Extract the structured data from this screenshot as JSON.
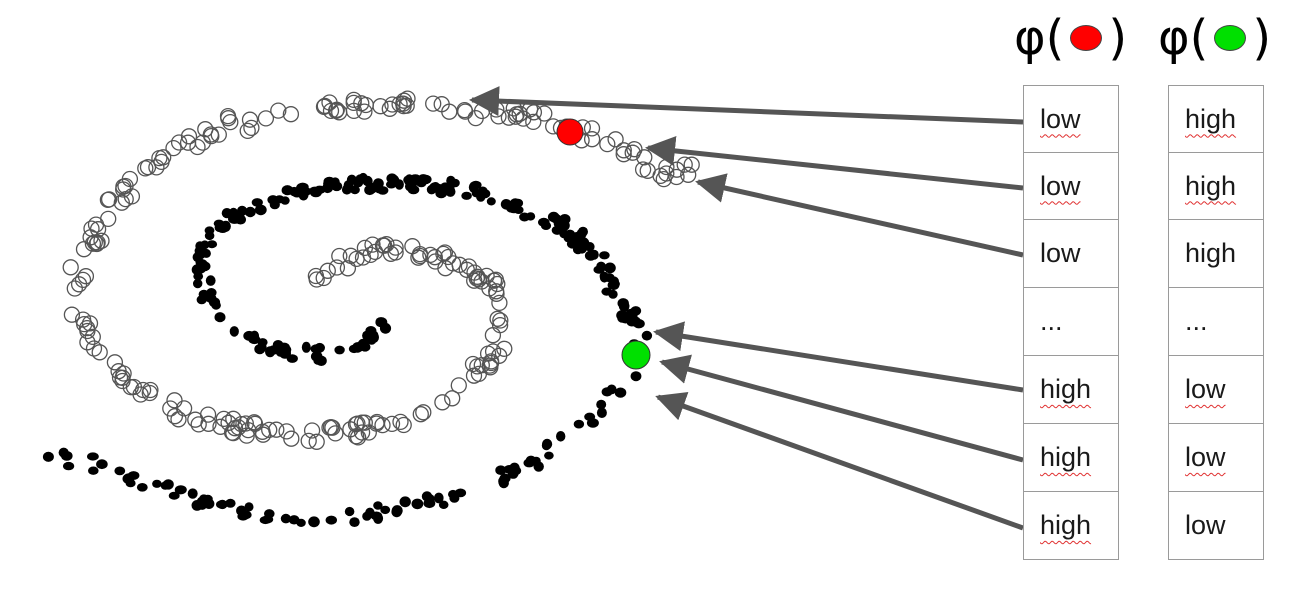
{
  "headers": [
    {
      "prefix": "φ(",
      "suffix": ")",
      "dot_color": "#ff0000"
    },
    {
      "prefix": "φ(",
      "suffix": ")",
      "dot_color": "#00e000"
    }
  ],
  "tables": [
    {
      "rows": [
        "low",
        "low",
        "low",
        "...",
        "high",
        "high",
        "high"
      ],
      "spellcheck": [
        true,
        true,
        false,
        false,
        true,
        true,
        true
      ]
    },
    {
      "rows": [
        "high",
        "high",
        "high",
        "...",
        "low",
        "low",
        "low"
      ],
      "spellcheck": [
        true,
        true,
        false,
        false,
        true,
        true,
        false
      ]
    }
  ],
  "markers": {
    "red": "#ff0000",
    "green": "#00e000"
  },
  "colors": {
    "arrow": "#555555",
    "outer_ring": "#555555",
    "inner_dots": "#000000"
  }
}
